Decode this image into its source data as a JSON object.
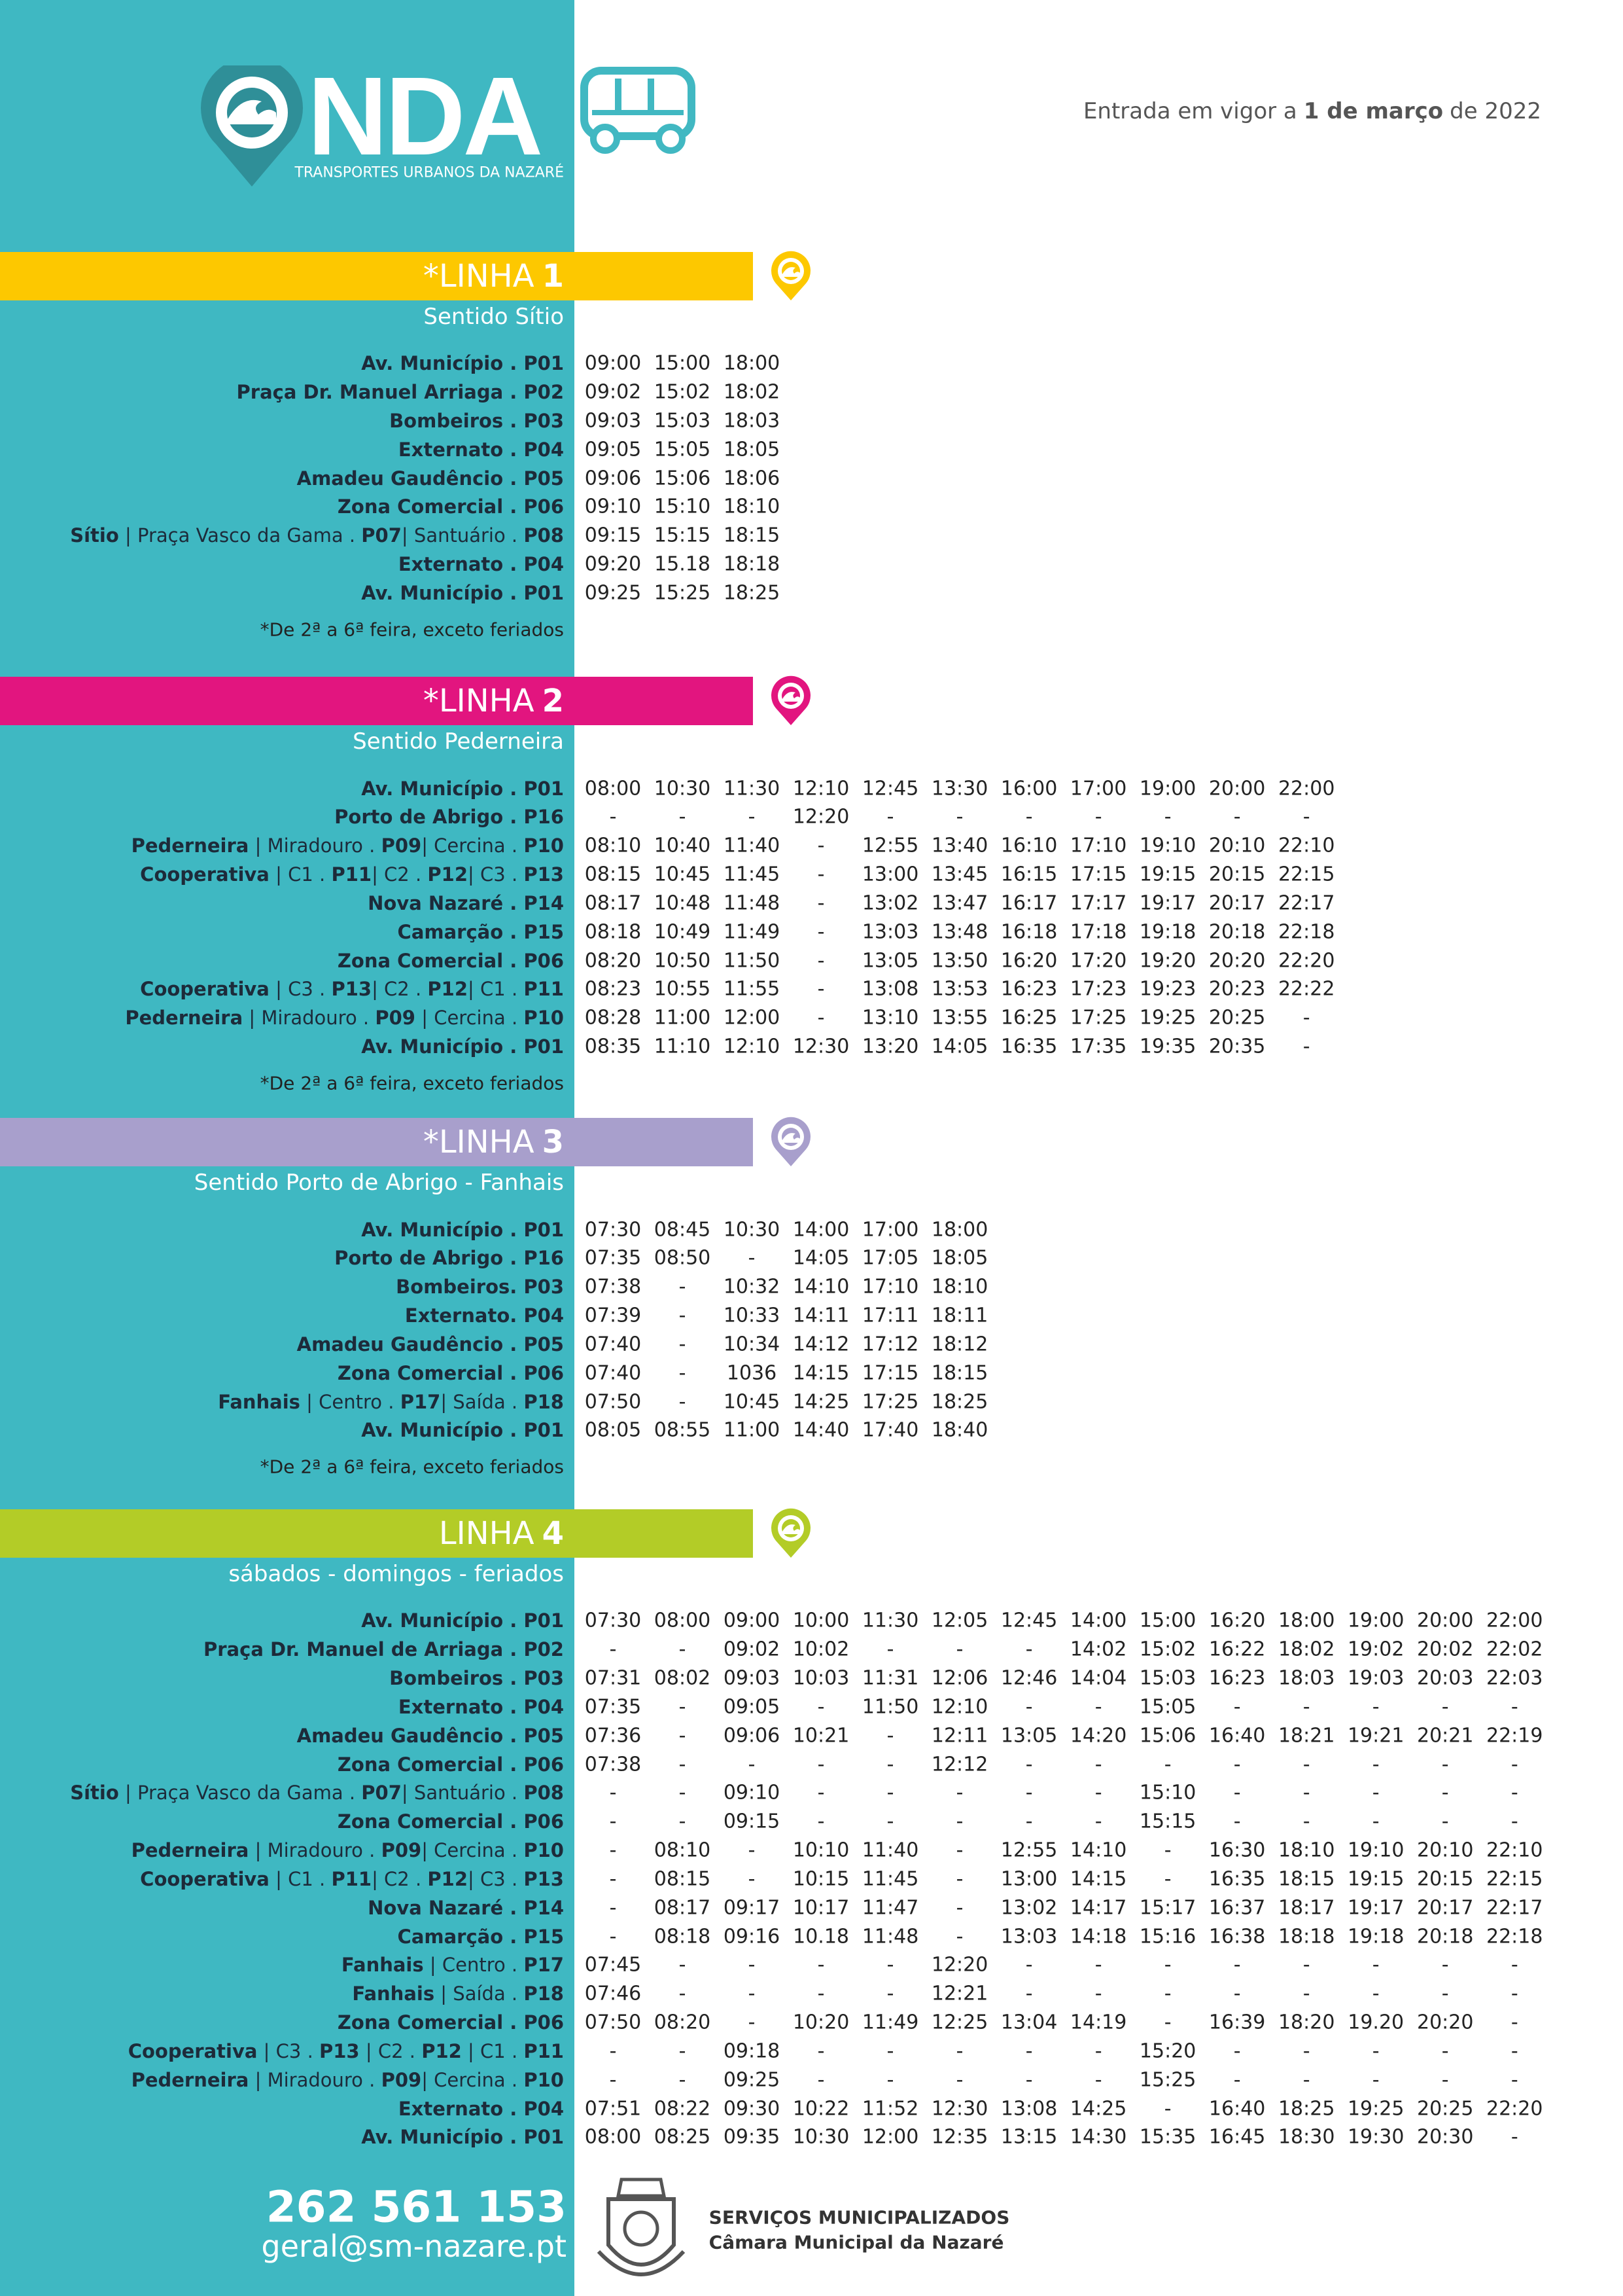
{
  "header": {
    "brand": "NDA",
    "tagline": "TRANSPORTES URBANOS DA NAZARÉ",
    "effective": [
      "Entrada em vigor a",
      "1 de março",
      "de 2022"
    ]
  },
  "lines": [
    {
      "title": "*LINHA",
      "number": "1",
      "color": "#fdc800",
      "direction": "Sentido Sítio",
      "note": "*De 2ª a 6ª feira, exceto feriados",
      "rows": [
        {
          "stop": [
            "Av. Município . P01"
          ],
          "times": [
            "09:00",
            "15:00",
            "18:00"
          ]
        },
        {
          "stop": [
            "Praça Dr. Manuel Arriaga . P02"
          ],
          "times": [
            "09:02",
            "15:02",
            "18:02"
          ]
        },
        {
          "stop": [
            "Bombeiros . P03"
          ],
          "times": [
            "09:03",
            "15:03",
            "18:03"
          ]
        },
        {
          "stop": [
            "Externato . P04"
          ],
          "times": [
            "09:05",
            "15:05",
            "18:05"
          ]
        },
        {
          "stop": [
            "Amadeu Gaudêncio . P05"
          ],
          "times": [
            "09:06",
            "15:06",
            "18:06"
          ]
        },
        {
          "stop": [
            "Zona Comercial . P06"
          ],
          "times": [
            "09:10",
            "15:10",
            "18:10"
          ]
        },
        {
          "stop": [
            "Sítio",
            " | Praça Vasco da Gama . ",
            "P07",
            "| Santuário . ",
            "P08"
          ],
          "times": [
            "09:15",
            "15:15",
            "18:15"
          ]
        },
        {
          "stop": [
            "Externato . P04"
          ],
          "times": [
            "09:20",
            "15.18",
            "18:18"
          ]
        },
        {
          "stop": [
            "Av. Município . P01"
          ],
          "times": [
            "09:25",
            "15:25",
            "18:25"
          ]
        }
      ]
    },
    {
      "title": "*LINHA",
      "number": "2",
      "color": "#e2157f",
      "direction": "Sentido Pederneira",
      "note": "*De 2ª a 6ª feira, exceto feriados",
      "rows": [
        {
          "stop": [
            "Av. Município . P01"
          ],
          "times": [
            "08:00",
            "10:30",
            "11:30",
            "12:10",
            "12:45",
            "13:30",
            "16:00",
            "17:00",
            "19:00",
            "20:00",
            "22:00"
          ]
        },
        {
          "stop": [
            "Porto de Abrigo . P16"
          ],
          "times": [
            "-",
            "-",
            "-",
            "12:20",
            "-",
            "-",
            "-",
            "-",
            "-",
            "-",
            "-"
          ]
        },
        {
          "stop": [
            "Pederneira",
            " | Miradouro . ",
            "P09",
            "| Cercina . ",
            "P10"
          ],
          "times": [
            "08:10",
            "10:40",
            "11:40",
            "-",
            "12:55",
            "13:40",
            "16:10",
            "17:10",
            "19:10",
            "20:10",
            "22:10"
          ]
        },
        {
          "stop": [
            "Cooperativa",
            " | C1 . ",
            "P11",
            "| C2 . ",
            "P12",
            "| C3 . ",
            "P13"
          ],
          "times": [
            "08:15",
            "10:45",
            "11:45",
            "-",
            "13:00",
            "13:45",
            "16:15",
            "17:15",
            "19:15",
            "20:15",
            "22:15"
          ]
        },
        {
          "stop": [
            "Nova Nazaré . P14"
          ],
          "times": [
            "08:17",
            "10:48",
            "11:48",
            "-",
            "13:02",
            "13:47",
            "16:17",
            "17:17",
            "19:17",
            "20:17",
            "22:17"
          ]
        },
        {
          "stop": [
            "Camarção . P15"
          ],
          "times": [
            "08:18",
            "10:49",
            "11:49",
            "-",
            "13:03",
            "13:48",
            "16:18",
            "17:18",
            "19:18",
            "20:18",
            "22:18"
          ]
        },
        {
          "stop": [
            "Zona Comercial . P06"
          ],
          "times": [
            "08:20",
            "10:50",
            "11:50",
            "-",
            "13:05",
            "13:50",
            "16:20",
            "17:20",
            "19:20",
            "20:20",
            "22:20"
          ]
        },
        {
          "stop": [
            "Cooperativa",
            " | C3 . ",
            "P13",
            "| C2 . ",
            "P12",
            "| C1 . ",
            "P11"
          ],
          "times": [
            "08:23",
            "10:55",
            "11:55",
            "-",
            "13:08",
            "13:53",
            "16:23",
            "17:23",
            "19:23",
            "20:23",
            "22:22"
          ]
        },
        {
          "stop": [
            "Pederneira",
            " | Miradouro . ",
            "P09",
            " | Cercina . ",
            "P10"
          ],
          "times": [
            "08:28",
            "11:00",
            "12:00",
            "-",
            "13:10",
            "13:55",
            "16:25",
            "17:25",
            "19:25",
            "20:25",
            "-"
          ]
        },
        {
          "stop": [
            "Av. Município . P01"
          ],
          "times": [
            "08:35",
            "11:10",
            "12:10",
            "12:30",
            "13:20",
            "14:05",
            "16:35",
            "17:35",
            "19:35",
            "20:35",
            "-"
          ]
        }
      ]
    },
    {
      "title": "*LINHA",
      "number": "3",
      "color": "#a89fcc",
      "direction": "Sentido Porto de Abrigo - Fanhais",
      "note": "*De 2ª a 6ª feira, exceto feriados",
      "rows": [
        {
          "stop": [
            "Av. Município . P01"
          ],
          "times": [
            "07:30",
            "08:45",
            "10:30",
            "14:00",
            "17:00",
            "18:00"
          ]
        },
        {
          "stop": [
            "Porto de Abrigo . P16"
          ],
          "times": [
            "07:35",
            "08:50",
            "-",
            "14:05",
            "17:05",
            "18:05"
          ]
        },
        {
          "stop": [
            "Bombeiros. P03"
          ],
          "times": [
            "07:38",
            "-",
            "10:32",
            "14:10",
            "17:10",
            "18:10"
          ]
        },
        {
          "stop": [
            "Externato. P04"
          ],
          "times": [
            "07:39",
            "-",
            "10:33",
            "14:11",
            "17:11",
            "18:11"
          ]
        },
        {
          "stop": [
            "Amadeu Gaudêncio . P05"
          ],
          "times": [
            "07:40",
            "-",
            "10:34",
            "14:12",
            "17:12",
            "18:12"
          ]
        },
        {
          "stop": [
            "Zona Comercial . P06"
          ],
          "times": [
            "07:40",
            "-",
            "1036",
            "14:15",
            "17:15",
            "18:15"
          ]
        },
        {
          "stop": [
            "Fanhais",
            " | Centro . ",
            "P17",
            "| Saída . ",
            "P18"
          ],
          "times": [
            "07:50",
            "-",
            "10:45",
            "14:25",
            "17:25",
            "18:25"
          ]
        },
        {
          "stop": [
            "Av. Município . P01"
          ],
          "times": [
            "08:05",
            "08:55",
            "11:00",
            "14:40",
            "17:40",
            "18:40"
          ]
        }
      ]
    },
    {
      "title": "LINHA",
      "number": "4",
      "color": "#b3cc27",
      "direction": "sábados - domingos - feriados",
      "rows": [
        {
          "stop": [
            "Av. Município . P01"
          ],
          "times": [
            "07:30",
            "08:00",
            "09:00",
            "10:00",
            "11:30",
            "12:05",
            "12:45",
            "14:00",
            "15:00",
            "16:20",
            "18:00",
            "19:00",
            "20:00",
            "22:00"
          ]
        },
        {
          "stop": [
            "Praça Dr. Manuel de Arriaga . P02"
          ],
          "times": [
            "-",
            "-",
            "09:02",
            "10:02",
            "-",
            "-",
            "-",
            "14:02",
            "15:02",
            "16:22",
            "18:02",
            "19:02",
            "20:02",
            "22:02"
          ]
        },
        {
          "stop": [
            "Bombeiros . P03"
          ],
          "times": [
            "07:31",
            "08:02",
            "09:03",
            "10:03",
            "11:31",
            "12:06",
            "12:46",
            "14:04",
            "15:03",
            "16:23",
            "18:03",
            "19:03",
            "20:03",
            "22:03"
          ]
        },
        {
          "stop": [
            "Externato . P04"
          ],
          "times": [
            "07:35",
            "-",
            "09:05",
            "-",
            "11:50",
            "12:10",
            "-",
            "-",
            "15:05",
            "-",
            "-",
            "-",
            "-",
            "-"
          ]
        },
        {
          "stop": [
            "Amadeu Gaudêncio . P05"
          ],
          "times": [
            "07:36",
            "-",
            "09:06",
            "10:21",
            "-",
            "12:11",
            "13:05",
            "14:20",
            "15:06",
            "16:40",
            "18:21",
            "19:21",
            "20:21",
            "22:19"
          ]
        },
        {
          "stop": [
            "Zona Comercial . P06"
          ],
          "times": [
            "07:38",
            "-",
            "-",
            "-",
            "-",
            "12:12",
            "-",
            "-",
            "-",
            "-",
            "-",
            "-",
            "-",
            "-"
          ]
        },
        {
          "stop": [
            "Sítio",
            " | Praça Vasco da Gama . ",
            "P07",
            "| Santuário . ",
            "P08"
          ],
          "times": [
            "-",
            "-",
            "09:10",
            "-",
            "-",
            "-",
            "-",
            "-",
            "15:10",
            "-",
            "-",
            "-",
            "-",
            "-"
          ]
        },
        {
          "stop": [
            "Zona Comercial . P06"
          ],
          "times": [
            "-",
            "-",
            "09:15",
            "-",
            "-",
            "-",
            "-",
            "-",
            "15:15",
            "-",
            "-",
            "-",
            "-",
            "-"
          ]
        },
        {
          "stop": [
            "Pederneira",
            " | Miradouro . ",
            "P09",
            "| Cercina . ",
            "P10"
          ],
          "times": [
            "-",
            "08:10",
            "-",
            "10:10",
            "11:40",
            "-",
            "12:55",
            "14:10",
            "-",
            "16:30",
            "18:10",
            "19:10",
            "20:10",
            "22:10"
          ]
        },
        {
          "stop": [
            "Cooperativa",
            " | C1 . ",
            "P11",
            "| C2 . ",
            "P12",
            "| C3 . ",
            "P13"
          ],
          "times": [
            "-",
            "08:15",
            "-",
            "10:15",
            "11:45",
            "-",
            "13:00",
            "14:15",
            "-",
            "16:35",
            "18:15",
            "19:15",
            "20:15",
            "22:15"
          ]
        },
        {
          "stop": [
            "Nova Nazaré . P14"
          ],
          "times": [
            "-",
            "08:17",
            "09:17",
            "10:17",
            "11:47",
            "-",
            "13:02",
            "14:17",
            "15:17",
            "16:37",
            "18:17",
            "19:17",
            "20:17",
            "22:17"
          ]
        },
        {
          "stop": [
            "Camarção . P15"
          ],
          "times": [
            "-",
            "08:18",
            "09:16",
            "10.18",
            "11:48",
            "-",
            "13:03",
            "14:18",
            "15:16",
            "16:38",
            "18:18",
            "19:18",
            "20:18",
            "22:18"
          ]
        },
        {
          "stop": [
            "Fanhais",
            " | Centro . ",
            "P17"
          ],
          "times": [
            "07:45",
            "-",
            "-",
            "-",
            "-",
            "12:20",
            "-",
            "-",
            "-",
            "-",
            "-",
            "-",
            "-",
            "-"
          ]
        },
        {
          "stop": [
            "Fanhais",
            " | Saída . ",
            "P18"
          ],
          "times": [
            "07:46",
            "-",
            "-",
            "-",
            "-",
            "12:21",
            "-",
            "-",
            "-",
            "-",
            "-",
            "-",
            "-",
            "-"
          ]
        },
        {
          "stop": [
            "Zona Comercial . P06"
          ],
          "times": [
            "07:50",
            "08:20",
            "-",
            "10:20",
            "11:49",
            "12:25",
            "13:04",
            "14:19",
            "-",
            "16:39",
            "18:20",
            "19.20",
            "20:20",
            "-"
          ]
        },
        {
          "stop": [
            "Cooperativa",
            " | C3 . ",
            "P13",
            " | C2 . ",
            "P12",
            " | C1 . ",
            "P11"
          ],
          "times": [
            "-",
            "-",
            "09:18",
            "-",
            "-",
            "-",
            "-",
            "-",
            "15:20",
            "-",
            "-",
            "-",
            "-",
            "-"
          ]
        },
        {
          "stop": [
            "Pederneira",
            " | Miradouro . ",
            "P09",
            "| Cercina . ",
            "P10"
          ],
          "times": [
            "-",
            "-",
            "09:25",
            "-",
            "-",
            "-",
            "-",
            "-",
            "15:25",
            "-",
            "-",
            "-",
            "-",
            "-"
          ]
        },
        {
          "stop": [
            "Externato . P04"
          ],
          "times": [
            "07:51",
            "08:22",
            "09:30",
            "10:22",
            "11:52",
            "12:30",
            "13:08",
            "14:25",
            "-",
            "16:40",
            "18:25",
            "19:25",
            "20:25",
            "22:20"
          ]
        },
        {
          "stop": [
            "Av. Município . P01"
          ],
          "times": [
            "08:00",
            "08:25",
            "09:35",
            "10:30",
            "12:00",
            "12:35",
            "13:15",
            "14:30",
            "15:35",
            "16:45",
            "18:30",
            "19:30",
            "20:30",
            "-"
          ]
        }
      ]
    }
  ],
  "footer": {
    "phone": "262 561 153",
    "email": "geral@sm-nazare.pt",
    "org": "SERVIÇOS MUNICIPALIZADOS",
    "council": "Câmara Municipal da Nazaré"
  }
}
